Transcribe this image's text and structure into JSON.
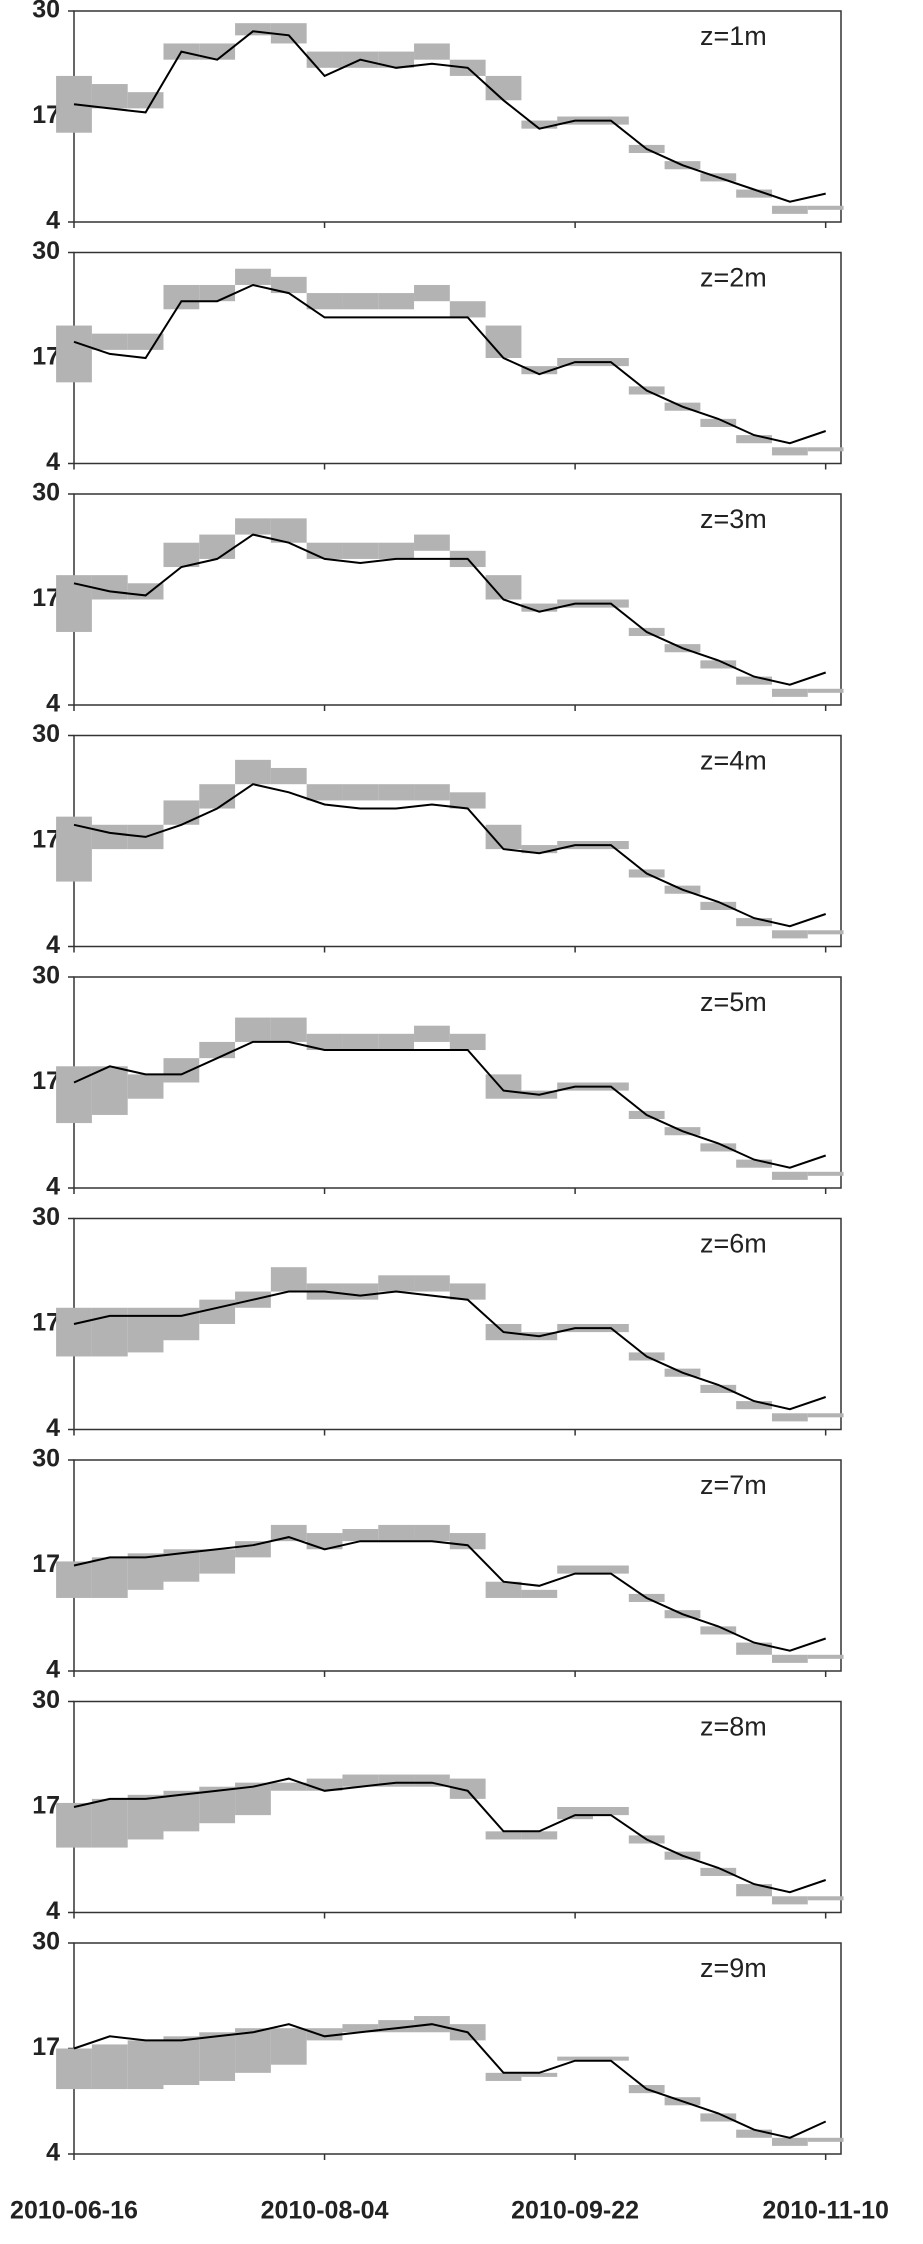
{
  "chart_data": [
    {
      "type": "line",
      "annotation": "z=1m",
      "ylim": [
        4,
        30
      ],
      "yticks": [
        4,
        17,
        30
      ],
      "xlim": [
        "2010-06-16",
        "2010-11-13"
      ],
      "x": [
        "2010-06-16",
        "2010-06-23",
        "2010-06-30",
        "2010-07-07",
        "2010-07-14",
        "2010-07-21",
        "2010-07-28",
        "2010-08-04",
        "2010-08-11",
        "2010-08-18",
        "2010-08-25",
        "2010-09-01",
        "2010-09-08",
        "2010-09-15",
        "2010-09-22",
        "2010-09-29",
        "2010-10-06",
        "2010-10-13",
        "2010-10-20",
        "2010-10-27",
        "2010-11-03",
        "2010-11-10"
      ],
      "series": [
        {
          "color": "#b3b3b3",
          "low": [
            15,
            18,
            18,
            24,
            24,
            27,
            26,
            23,
            23,
            23,
            24,
            22,
            19,
            15.5,
            16,
            16,
            12.5,
            10.5,
            9,
            7,
            5,
            5.5
          ],
          "high": [
            22,
            21,
            20,
            26,
            26,
            28.5,
            28.5,
            25,
            25,
            25,
            26,
            24,
            22,
            16.5,
            17,
            17,
            13.5,
            11.5,
            10,
            8,
            6,
            6
          ]
        },
        {
          "color": "#000000",
          "values": [
            18.5,
            18,
            17.5,
            25,
            24,
            27.5,
            27,
            22,
            24,
            23,
            23.5,
            23,
            19,
            15.5,
            16.5,
            16.5,
            13,
            11,
            9.5,
            8,
            6.5,
            7.5
          ]
        }
      ]
    },
    {
      "type": "line",
      "annotation": "z=2m",
      "ylim": [
        4,
        30
      ],
      "yticks": [
        4,
        17,
        30
      ],
      "xlim": [
        "2010-06-16",
        "2010-11-13"
      ],
      "x": [
        "2010-06-16",
        "2010-06-23",
        "2010-06-30",
        "2010-07-07",
        "2010-07-14",
        "2010-07-21",
        "2010-07-28",
        "2010-08-04",
        "2010-08-11",
        "2010-08-18",
        "2010-08-25",
        "2010-09-01",
        "2010-09-08",
        "2010-09-15",
        "2010-09-22",
        "2010-09-29",
        "2010-10-06",
        "2010-10-13",
        "2010-10-20",
        "2010-10-27",
        "2010-11-03",
        "2010-11-10"
      ],
      "series": [
        {
          "color": "#b3b3b3",
          "low": [
            14,
            18,
            18,
            23,
            24,
            26,
            25,
            23,
            23,
            23,
            24,
            22,
            17,
            15,
            16,
            16,
            12.5,
            10.5,
            8.5,
            6.5,
            5,
            5.5
          ],
          "high": [
            21,
            20,
            20,
            26,
            26,
            28,
            27,
            25,
            25,
            25,
            26,
            24,
            21,
            16,
            17,
            17,
            13.5,
            11.5,
            9.5,
            7.5,
            6,
            6
          ]
        },
        {
          "color": "#000000",
          "values": [
            19,
            17.5,
            17,
            24,
            24,
            26,
            25,
            22,
            22,
            22,
            22,
            22,
            17,
            15,
            16.5,
            16.5,
            13,
            11,
            9.5,
            7.5,
            6.5,
            8
          ]
        }
      ]
    },
    {
      "type": "line",
      "annotation": "z=3m",
      "ylim": [
        4,
        30
      ],
      "yticks": [
        4,
        17,
        30
      ],
      "xlim": [
        "2010-06-16",
        "2010-11-13"
      ],
      "x": [
        "2010-06-16",
        "2010-06-23",
        "2010-06-30",
        "2010-07-07",
        "2010-07-14",
        "2010-07-21",
        "2010-07-28",
        "2010-08-04",
        "2010-08-11",
        "2010-08-18",
        "2010-08-25",
        "2010-09-01",
        "2010-09-08",
        "2010-09-15",
        "2010-09-22",
        "2010-09-29",
        "2010-10-06",
        "2010-10-13",
        "2010-10-20",
        "2010-10-27",
        "2010-11-03",
        "2010-11-10"
      ],
      "series": [
        {
          "color": "#b3b3b3",
          "low": [
            13,
            17,
            17,
            21,
            22,
            25,
            24,
            22,
            22,
            22,
            23,
            21,
            17,
            15.5,
            16,
            16,
            12.5,
            10.5,
            8.5,
            6.5,
            5,
            5.5
          ],
          "high": [
            20,
            20,
            19,
            24,
            25,
            27,
            27,
            24,
            24,
            24,
            25,
            23,
            20,
            16.5,
            17,
            17,
            13.5,
            11.5,
            9.5,
            7.5,
            6,
            6
          ]
        },
        {
          "color": "#000000",
          "values": [
            19,
            18,
            17.5,
            21,
            22,
            25,
            24,
            22,
            21.5,
            22,
            22,
            22,
            17,
            15.5,
            16.5,
            16.5,
            13,
            11,
            9.5,
            7.5,
            6.5,
            8
          ]
        }
      ]
    },
    {
      "type": "line",
      "annotation": "z=4m",
      "ylim": [
        4,
        30
      ],
      "yticks": [
        4,
        17,
        30
      ],
      "xlim": [
        "2010-06-16",
        "2010-11-13"
      ],
      "x": [
        "2010-06-16",
        "2010-06-23",
        "2010-06-30",
        "2010-07-07",
        "2010-07-14",
        "2010-07-21",
        "2010-07-28",
        "2010-08-04",
        "2010-08-11",
        "2010-08-18",
        "2010-08-25",
        "2010-09-01",
        "2010-09-08",
        "2010-09-15",
        "2010-09-22",
        "2010-09-29",
        "2010-10-06",
        "2010-10-13",
        "2010-10-20",
        "2010-10-27",
        "2010-11-03",
        "2010-11-10"
      ],
      "series": [
        {
          "color": "#b3b3b3",
          "low": [
            12,
            16,
            16,
            19,
            21,
            24,
            24,
            22,
            22,
            22,
            22,
            21,
            16,
            15.5,
            16,
            16,
            12.5,
            10.5,
            8.5,
            6.5,
            5,
            5.5
          ],
          "high": [
            20,
            19,
            19,
            22,
            24,
            27,
            26,
            24,
            24,
            24,
            24,
            23,
            19,
            16.5,
            17,
            17,
            13.5,
            11.5,
            9.5,
            7.5,
            6,
            6
          ]
        },
        {
          "color": "#000000",
          "values": [
            19,
            18,
            17.5,
            19,
            21,
            24,
            23,
            21.5,
            21,
            21,
            21.5,
            21,
            16,
            15.5,
            16.5,
            16.5,
            13,
            11,
            9.5,
            7.5,
            6.5,
            8
          ]
        }
      ]
    },
    {
      "type": "line",
      "annotation": "z=5m",
      "ylim": [
        4,
        30
      ],
      "yticks": [
        4,
        17,
        30
      ],
      "xlim": [
        "2010-06-16",
        "2010-11-13"
      ],
      "x": [
        "2010-06-16",
        "2010-06-23",
        "2010-06-30",
        "2010-07-07",
        "2010-07-14",
        "2010-07-21",
        "2010-07-28",
        "2010-08-04",
        "2010-08-11",
        "2010-08-18",
        "2010-08-25",
        "2010-09-01",
        "2010-09-08",
        "2010-09-15",
        "2010-09-22",
        "2010-09-29",
        "2010-10-06",
        "2010-10-13",
        "2010-10-20",
        "2010-10-27",
        "2010-11-03",
        "2010-11-10"
      ],
      "series": [
        {
          "color": "#b3b3b3",
          "low": [
            12,
            13,
            15,
            17,
            20,
            22,
            22,
            21,
            21,
            21,
            22,
            21,
            15,
            15,
            16,
            16,
            12.5,
            10.5,
            8.5,
            6.5,
            5,
            5.5
          ],
          "high": [
            19,
            19,
            18,
            20,
            22,
            25,
            25,
            23,
            23,
            23,
            24,
            23,
            18,
            16,
            17,
            17,
            13.5,
            11.5,
            9.5,
            7.5,
            6,
            6
          ]
        },
        {
          "color": "#000000",
          "values": [
            17,
            19,
            18,
            18,
            20,
            22,
            22,
            21,
            21,
            21,
            21,
            21,
            16,
            15.5,
            16.5,
            16.5,
            13,
            11,
            9.5,
            7.5,
            6.5,
            8
          ]
        }
      ]
    },
    {
      "type": "line",
      "annotation": "z=6m",
      "ylim": [
        4,
        30
      ],
      "yticks": [
        4,
        17,
        30
      ],
      "xlim": [
        "2010-06-16",
        "2010-11-13"
      ],
      "x": [
        "2010-06-16",
        "2010-06-23",
        "2010-06-30",
        "2010-07-07",
        "2010-07-14",
        "2010-07-21",
        "2010-07-28",
        "2010-08-04",
        "2010-08-11",
        "2010-08-18",
        "2010-08-25",
        "2010-09-01",
        "2010-09-08",
        "2010-09-15",
        "2010-09-22",
        "2010-09-29",
        "2010-10-06",
        "2010-10-13",
        "2010-10-20",
        "2010-10-27",
        "2010-11-03",
        "2010-11-10"
      ],
      "series": [
        {
          "color": "#b3b3b3",
          "low": [
            13,
            13,
            13.5,
            15,
            17,
            19,
            21,
            20,
            20,
            21,
            21,
            20,
            15,
            15,
            16,
            16,
            12.5,
            10.5,
            8.5,
            6.5,
            5,
            5.5
          ],
          "high": [
            19,
            19,
            19,
            19,
            20,
            21,
            24,
            22,
            22,
            23,
            23,
            22,
            17,
            16,
            17,
            17,
            13.5,
            11.5,
            9.5,
            7.5,
            6,
            6
          ]
        },
        {
          "color": "#000000",
          "values": [
            17,
            18,
            18,
            18,
            19,
            20,
            21,
            21,
            20.5,
            21,
            20.5,
            20,
            16,
            15.5,
            16.5,
            16.5,
            13,
            11,
            9.5,
            7.5,
            6.5,
            8
          ]
        }
      ]
    },
    {
      "type": "line",
      "annotation": "z=7m",
      "ylim": [
        4,
        30
      ],
      "yticks": [
        4,
        17,
        30
      ],
      "xlim": [
        "2010-06-16",
        "2010-11-13"
      ],
      "x": [
        "2010-06-16",
        "2010-06-23",
        "2010-06-30",
        "2010-07-07",
        "2010-07-14",
        "2010-07-21",
        "2010-07-28",
        "2010-08-04",
        "2010-08-11",
        "2010-08-18",
        "2010-08-25",
        "2010-09-01",
        "2010-09-08",
        "2010-09-15",
        "2010-09-22",
        "2010-09-29",
        "2010-10-06",
        "2010-10-13",
        "2010-10-20",
        "2010-10-27",
        "2010-11-03",
        "2010-11-10"
      ],
      "series": [
        {
          "color": "#b3b3b3",
          "low": [
            13,
            13,
            14,
            15,
            16,
            18,
            20,
            19,
            20,
            20,
            20,
            19,
            13,
            13,
            16,
            16,
            12.5,
            10.5,
            8.5,
            6,
            5,
            5.5
          ],
          "high": [
            17.5,
            18,
            18.5,
            19,
            19,
            20,
            22,
            21,
            21.5,
            22,
            22,
            21,
            15,
            14,
            17,
            17,
            13.5,
            11.5,
            9.5,
            7.5,
            6,
            6
          ]
        },
        {
          "color": "#000000",
          "values": [
            17,
            18,
            18,
            18.5,
            19,
            19.5,
            20.5,
            19,
            20,
            20,
            20,
            19.5,
            15,
            14.5,
            16,
            16,
            13,
            11,
            9.5,
            7.5,
            6.5,
            8
          ]
        }
      ]
    },
    {
      "type": "line",
      "annotation": "z=8m",
      "ylim": [
        4,
        30
      ],
      "yticks": [
        4,
        17,
        30
      ],
      "xlim": [
        "2010-06-16",
        "2010-11-13"
      ],
      "x": [
        "2010-06-16",
        "2010-06-23",
        "2010-06-30",
        "2010-07-07",
        "2010-07-14",
        "2010-07-21",
        "2010-07-28",
        "2010-08-04",
        "2010-08-11",
        "2010-08-18",
        "2010-08-25",
        "2010-09-01",
        "2010-09-08",
        "2010-09-15",
        "2010-09-22",
        "2010-09-29",
        "2010-10-06",
        "2010-10-13",
        "2010-10-20",
        "2010-10-27",
        "2010-11-03",
        "2010-11-10"
      ],
      "series": [
        {
          "color": "#b3b3b3",
          "low": [
            12,
            12,
            13,
            14,
            15,
            16,
            19,
            19,
            19.5,
            19.5,
            19.5,
            18,
            13,
            13,
            15.5,
            16,
            12.5,
            10.5,
            8.5,
            6,
            5,
            5.5
          ],
          "high": [
            17.5,
            18,
            18.5,
            19,
            19.5,
            20,
            20,
            20.5,
            21,
            21,
            21,
            20.5,
            14,
            14,
            17,
            17,
            13.5,
            11.5,
            9.5,
            7.5,
            6,
            6
          ]
        },
        {
          "color": "#000000",
          "values": [
            17,
            18,
            18,
            18.5,
            19,
            19.5,
            20.5,
            19,
            19.5,
            20,
            20,
            19,
            14,
            14,
            16,
            16,
            13,
            11,
            9.5,
            7.5,
            6.5,
            8
          ]
        }
      ]
    },
    {
      "type": "line",
      "annotation": "z=9m",
      "ylim": [
        4,
        30
      ],
      "yticks": [
        4,
        17,
        30
      ],
      "xlim": [
        "2010-06-16",
        "2010-11-13"
      ],
      "xticks": [
        "2010-06-16",
        "2010-08-04",
        "2010-09-22",
        "2010-11-10"
      ],
      "x": [
        "2010-06-16",
        "2010-06-23",
        "2010-06-30",
        "2010-07-07",
        "2010-07-14",
        "2010-07-21",
        "2010-07-28",
        "2010-08-04",
        "2010-08-11",
        "2010-08-18",
        "2010-08-25",
        "2010-09-01",
        "2010-09-08",
        "2010-09-15",
        "2010-09-22",
        "2010-09-29",
        "2010-10-06",
        "2010-10-13",
        "2010-10-20",
        "2010-10-27",
        "2010-11-03",
        "2010-11-10"
      ],
      "series": [
        {
          "color": "#b3b3b3",
          "low": [
            12,
            12,
            12,
            12.5,
            13,
            14,
            15,
            18,
            19,
            19,
            19,
            18,
            13,
            13.5,
            15.5,
            15.5,
            11.5,
            10,
            8,
            6,
            5,
            5.5
          ],
          "high": [
            17,
            17.5,
            18,
            18.5,
            19,
            19.5,
            19.5,
            19.5,
            20,
            20.5,
            21,
            20,
            14,
            14,
            16,
            16,
            12.5,
            11,
            9,
            7,
            6,
            6
          ]
        },
        {
          "color": "#000000",
          "values": [
            17,
            18.5,
            18,
            18,
            18.5,
            19,
            20,
            18.5,
            19,
            19.5,
            20,
            19,
            14,
            14,
            15.5,
            15.5,
            12,
            10.5,
            9,
            7,
            6,
            8
          ]
        }
      ]
    }
  ]
}
